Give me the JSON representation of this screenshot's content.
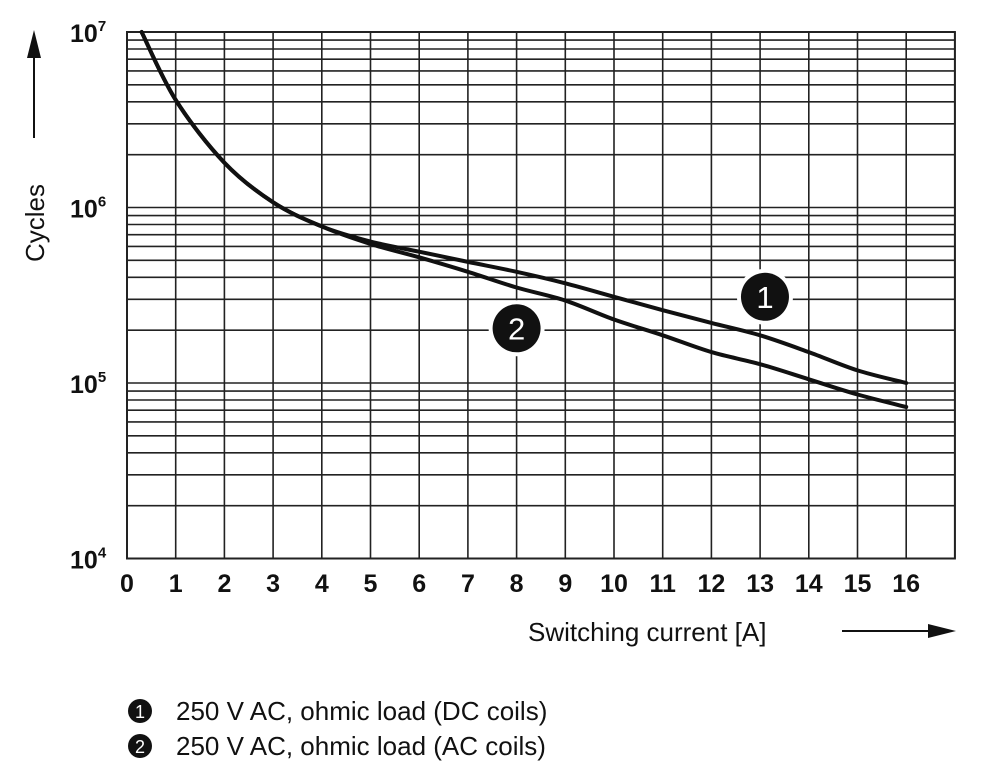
{
  "chart_data": {
    "type": "line",
    "xlabel": "Switching current [A]",
    "ylabel": "Cycles",
    "xlim": [
      0,
      17
    ],
    "ylim": [
      10000,
      10000000
    ],
    "yscale": "log",
    "grid": true,
    "x_ticks": [
      "0",
      "1",
      "2",
      "3",
      "4",
      "5",
      "6",
      "7",
      "8",
      "9",
      "10",
      "11",
      "12",
      "13",
      "14",
      "15",
      "16"
    ],
    "y_ticks": [
      {
        "base": "10",
        "exp": "4",
        "value": 10000
      },
      {
        "base": "10",
        "exp": "5",
        "value": 100000
      },
      {
        "base": "10",
        "exp": "6",
        "value": 1000000
      },
      {
        "base": "10",
        "exp": "7",
        "value": 10000000
      }
    ],
    "series": [
      {
        "marker": "1",
        "name": "250 V AC, ohmic load (DC coils)",
        "x": [
          0.3,
          1,
          2,
          3,
          4,
          5,
          6,
          7,
          8,
          9,
          10,
          11,
          12,
          13,
          14,
          15,
          16
        ],
        "y": [
          10000000,
          4100000,
          1800000,
          1070000,
          780000,
          640000,
          560000,
          490000,
          430000,
          370000,
          310000,
          260000,
          220000,
          187000,
          150000,
          118000,
          100000
        ],
        "label_at": [
          13.1,
          310000
        ]
      },
      {
        "marker": "2",
        "name": "250 V AC, ohmic load (AC coils)",
        "x": [
          0.3,
          1,
          2,
          3,
          4,
          5,
          6,
          7,
          8,
          9,
          10,
          11,
          12,
          13,
          14,
          15,
          16
        ],
        "y": [
          10000000,
          4100000,
          1800000,
          1070000,
          780000,
          620000,
          520000,
          430000,
          350000,
          295000,
          230000,
          187000,
          150000,
          128000,
          105000,
          86000,
          73000
        ],
        "label_at": [
          8,
          205000
        ]
      }
    ],
    "legend": {
      "placement": "bottom-left"
    },
    "colors": {
      "line": "#111111",
      "grid": "#222222",
      "marker_fill": "#111111",
      "marker_text": "#ffffff"
    }
  }
}
